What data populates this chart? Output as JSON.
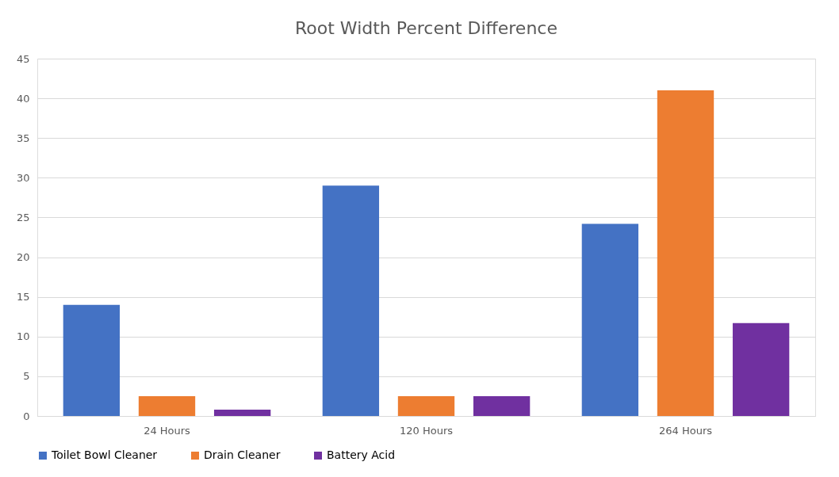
{
  "chart_data": {
    "type": "bar",
    "title": "Root Width Percent Difference",
    "categories": [
      "24 Hours",
      "120 Hours",
      "264 Hours"
    ],
    "series": [
      {
        "name": "Toilet Bowl Cleaner",
        "color": "#4472c4",
        "values": [
          14,
          29,
          24.2
        ]
      },
      {
        "name": "Drain Cleaner",
        "color": "#ed7d31",
        "values": [
          2.5,
          2.5,
          41
        ]
      },
      {
        "name": "Battery Acid",
        "color": "#7030a0",
        "values": [
          0.8,
          2.5,
          11.7
        ]
      }
    ],
    "ylim": [
      0,
      45
    ],
    "yticks": [
      0,
      5,
      10,
      15,
      20,
      25,
      30,
      35,
      40,
      45
    ],
    "grid": "y",
    "legend": "bottom"
  }
}
